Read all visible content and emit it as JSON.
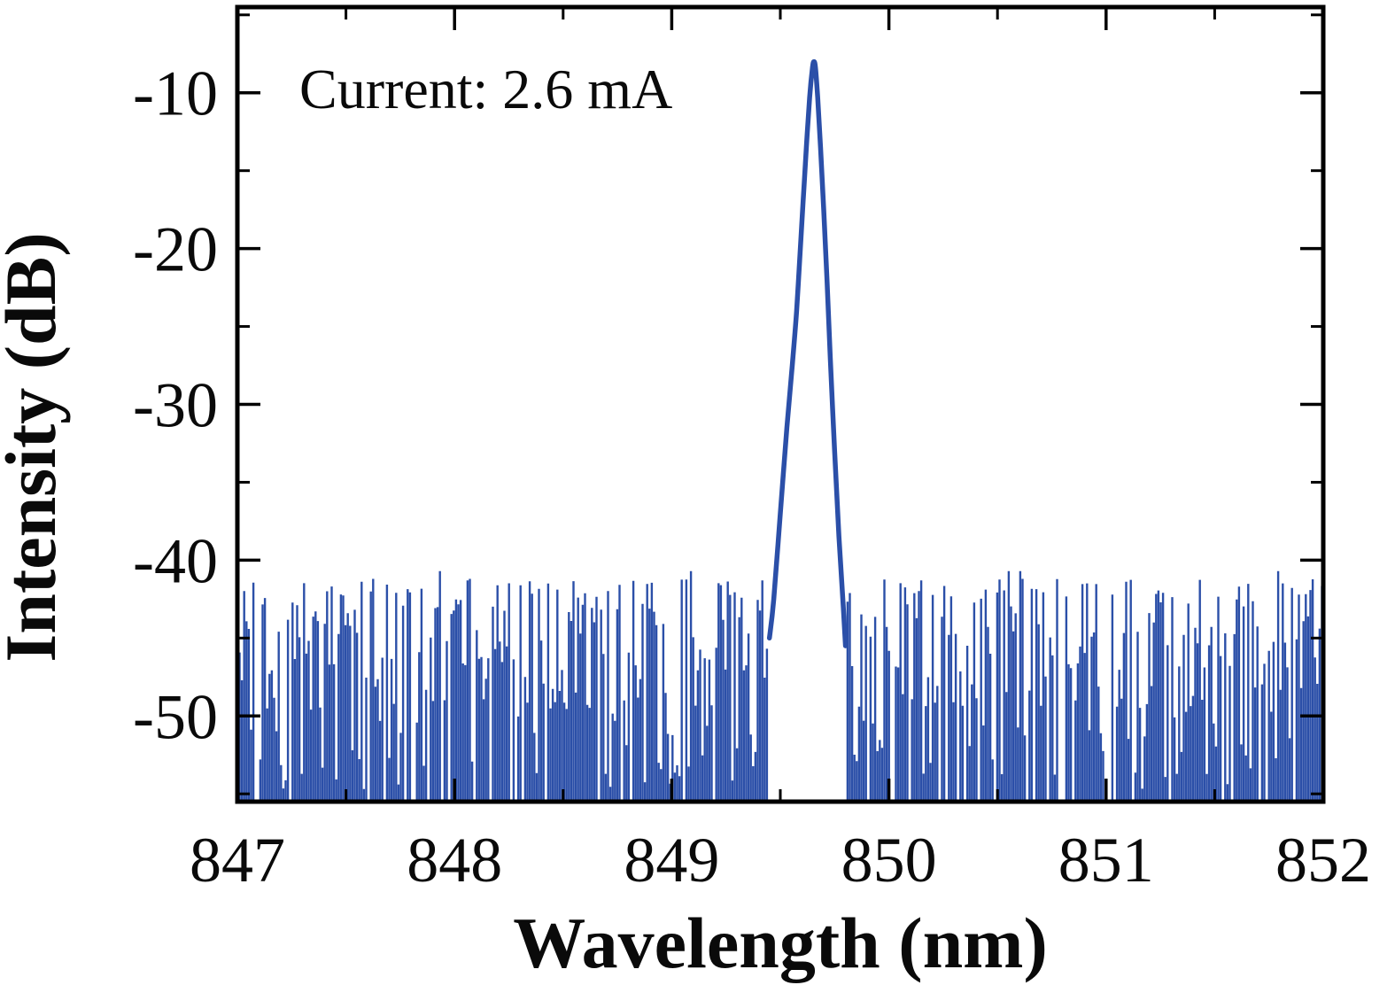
{
  "chart_data": {
    "type": "line",
    "title": "",
    "annotation": "Current: 2.6 mA",
    "xlabel": "Wavelength (nm)",
    "ylabel": "Intensity (dB)",
    "xlim": [
      847,
      852
    ],
    "ylim": [
      -55.5,
      -4.5
    ],
    "x_ticks": [
      847,
      848,
      849,
      850,
      851,
      852
    ],
    "x_minor_ticks": [
      847.5,
      848.5,
      849.5,
      850.5,
      851.5
    ],
    "y_ticks": [
      -10,
      -20,
      -30,
      -40,
      -50
    ],
    "y_minor_ticks": [
      -5,
      -15,
      -25,
      -35,
      -45,
      -55
    ],
    "line_color": "#2b4fa8",
    "frame_color": "#000000",
    "peak": {
      "center_nm": 849.65,
      "peak_db": -8.0,
      "base_db": -45
    },
    "peak_profile": [
      [
        849.45,
        -45.0
      ],
      [
        849.47,
        -42.5
      ],
      [
        849.5,
        -37.0
      ],
      [
        849.53,
        -31.5
      ],
      [
        849.555,
        -27.5
      ],
      [
        849.575,
        -24.0
      ],
      [
        849.59,
        -20.5
      ],
      [
        849.605,
        -17.0
      ],
      [
        849.62,
        -13.5
      ],
      [
        849.635,
        -10.3
      ],
      [
        849.648,
        -8.4
      ],
      [
        849.655,
        -8.0
      ],
      [
        849.662,
        -8.4
      ],
      [
        849.672,
        -10.3
      ],
      [
        849.685,
        -13.5
      ],
      [
        849.7,
        -17.5
      ],
      [
        849.715,
        -22.0
      ],
      [
        849.73,
        -27.0
      ],
      [
        849.75,
        -33.0
      ],
      [
        849.77,
        -38.5
      ],
      [
        849.79,
        -43.0
      ],
      [
        849.8,
        -45.5
      ]
    ],
    "noise": {
      "top_max_db": -41.2,
      "spread_db": 13.5,
      "floor_db": -55.5,
      "gap_nm": [
        849.46,
        849.8
      ],
      "gap_probability": 0.12,
      "seed": 20260206
    }
  }
}
